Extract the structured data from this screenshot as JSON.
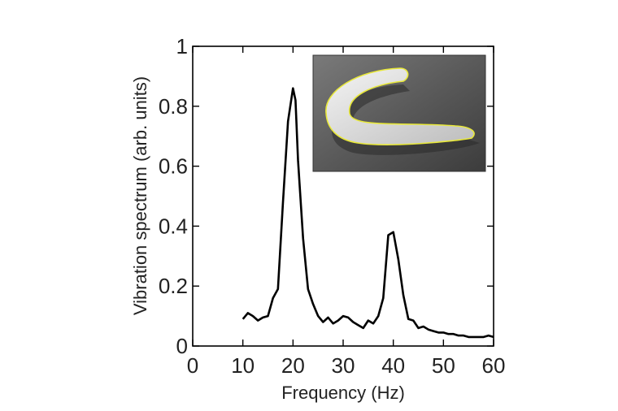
{
  "chart_data": {
    "type": "line",
    "title": "",
    "xlabel": "Frequency (Hz)",
    "ylabel": "Vibration spectrum (arb. units)",
    "xlim": [
      0,
      60
    ],
    "ylim": [
      0,
      1
    ],
    "xticks": [
      "0",
      "10",
      "20",
      "30",
      "40",
      "50",
      "60"
    ],
    "yticks": [
      "0",
      "0.2",
      "0.4",
      "0.6",
      "0.8",
      "1"
    ],
    "grid": false,
    "legend": "none",
    "series": [
      {
        "color": "#000000",
        "x": [
          10,
          11,
          12,
          13,
          14,
          15,
          16,
          17,
          18,
          19,
          20,
          20.5,
          21,
          22,
          23,
          24,
          25,
          26,
          27,
          28,
          29,
          30,
          31,
          32,
          33,
          34,
          35,
          36,
          37,
          38,
          39,
          40,
          41,
          42,
          43,
          44,
          45,
          46,
          47,
          48,
          49,
          50,
          51,
          52,
          53,
          54,
          55,
          56,
          57,
          58,
          59,
          60
        ],
        "y": [
          0.09,
          0.11,
          0.1,
          0.085,
          0.095,
          0.1,
          0.16,
          0.19,
          0.48,
          0.75,
          0.86,
          0.82,
          0.62,
          0.36,
          0.19,
          0.14,
          0.1,
          0.08,
          0.095,
          0.075,
          0.085,
          0.1,
          0.095,
          0.08,
          0.07,
          0.06,
          0.085,
          0.075,
          0.1,
          0.16,
          0.37,
          0.38,
          0.29,
          0.17,
          0.09,
          0.085,
          0.06,
          0.065,
          0.055,
          0.05,
          0.045,
          0.045,
          0.04,
          0.04,
          0.035,
          0.035,
          0.03,
          0.03,
          0.03,
          0.03,
          0.035,
          0.03
        ]
      }
    ]
  },
  "inset": {
    "subject": "worm-image",
    "outline_color": "#e8e83a"
  }
}
